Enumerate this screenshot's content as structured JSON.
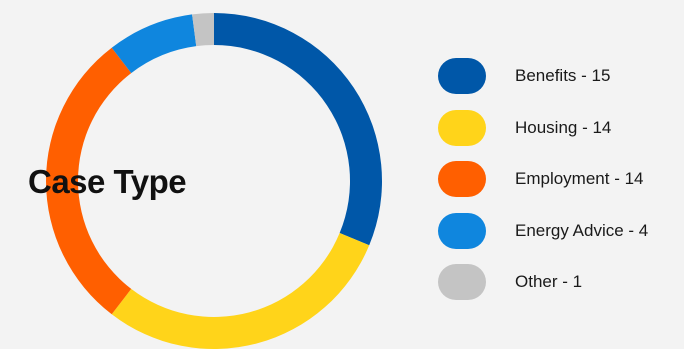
{
  "chart_data": {
    "type": "pie",
    "title": "Case Type",
    "categories": [
      "Benefits",
      "Housing",
      "Employment",
      "Energy Advice",
      "Other"
    ],
    "values": [
      15,
      14,
      14,
      4,
      1
    ],
    "colors": [
      "#0057a8",
      "#ffd41a",
      "#ff5f00",
      "#0f86de",
      "#c4c4c4"
    ],
    "legend_labels": [
      "Benefits - 15",
      "Housing - 14",
      "Employment - 14",
      "Energy Advice - 4",
      "Other - 1"
    ],
    "legend_position": "right",
    "donut": true
  }
}
